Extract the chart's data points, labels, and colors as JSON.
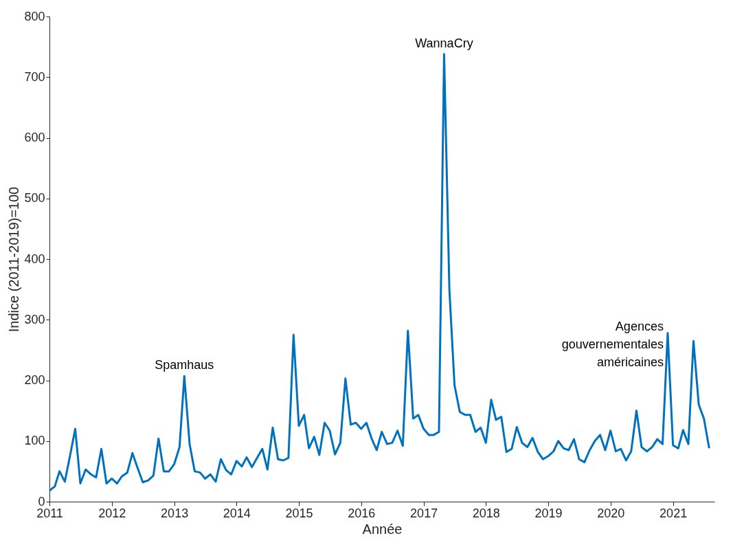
{
  "chart_data": {
    "type": "line",
    "xlabel": "Année",
    "ylabel": "Indice (2011-2019)=100",
    "xlim": [
      "2011-01",
      "2021-09"
    ],
    "xticks": [
      "2011",
      "2012",
      "2013",
      "2014",
      "2015",
      "2016",
      "2017",
      "2018",
      "2019",
      "2020",
      "2021"
    ],
    "ylim": [
      0,
      800
    ],
    "yticks": [
      0,
      100,
      200,
      300,
      400,
      500,
      600,
      700,
      800
    ],
    "grid": false,
    "marker": "none",
    "line_style": "solid",
    "annotations": [
      {
        "text": "Spamhaus",
        "x": "2013-03",
        "y": 207
      },
      {
        "text": "WannaCry",
        "x": "2017-05",
        "y": 738
      },
      {
        "text": "Agences gouvernementales américaines",
        "x": "2020-12",
        "y": 278
      }
    ],
    "series": [
      {
        "color": "#0072bd",
        "x": [
          "2011-01",
          "2011-02",
          "2011-03",
          "2011-04",
          "2011-05",
          "2011-06",
          "2011-07",
          "2011-08",
          "2011-09",
          "2011-10",
          "2011-11",
          "2011-12",
          "2012-01",
          "2012-02",
          "2012-03",
          "2012-04",
          "2012-05",
          "2012-06",
          "2012-07",
          "2012-08",
          "2012-09",
          "2012-10",
          "2012-11",
          "2012-12",
          "2013-01",
          "2013-02",
          "2013-03",
          "2013-04",
          "2013-05",
          "2013-06",
          "2013-07",
          "2013-08",
          "2013-09",
          "2013-10",
          "2013-11",
          "2013-12",
          "2014-01",
          "2014-02",
          "2014-03",
          "2014-04",
          "2014-05",
          "2014-06",
          "2014-07",
          "2014-08",
          "2014-09",
          "2014-10",
          "2014-11",
          "2014-12",
          "2015-01",
          "2015-02",
          "2015-03",
          "2015-04",
          "2015-05",
          "2015-06",
          "2015-07",
          "2015-08",
          "2015-09",
          "2015-10",
          "2015-11",
          "2015-12",
          "2016-01",
          "2016-02",
          "2016-03",
          "2016-04",
          "2016-05",
          "2016-06",
          "2016-07",
          "2016-08",
          "2016-09",
          "2016-10",
          "2016-11",
          "2016-12",
          "2017-01",
          "2017-02",
          "2017-03",
          "2017-04",
          "2017-05",
          "2017-06",
          "2017-07",
          "2017-08",
          "2017-09",
          "2017-10",
          "2017-11",
          "2017-12",
          "2018-01",
          "2018-02",
          "2018-03",
          "2018-04",
          "2018-05",
          "2018-06",
          "2018-07",
          "2018-08",
          "2018-09",
          "2018-10",
          "2018-11",
          "2018-12",
          "2019-01",
          "2019-02",
          "2019-03",
          "2019-04",
          "2019-05",
          "2019-06",
          "2019-07",
          "2019-08",
          "2019-09",
          "2019-10",
          "2019-11",
          "2019-12",
          "2020-01",
          "2020-02",
          "2020-03",
          "2020-04",
          "2020-05",
          "2020-06",
          "2020-07",
          "2020-08",
          "2020-09",
          "2020-10",
          "2020-11",
          "2020-12",
          "2021-01",
          "2021-02",
          "2021-03",
          "2021-04",
          "2021-05",
          "2021-06",
          "2021-07",
          "2021-08"
        ],
        "values": [
          18,
          25,
          50,
          33,
          75,
          120,
          30,
          53,
          45,
          40,
          87,
          30,
          38,
          30,
          42,
          48,
          80,
          55,
          32,
          35,
          43,
          104,
          50,
          50,
          62,
          90,
          207,
          95,
          50,
          48,
          38,
          45,
          33,
          70,
          52,
          45,
          67,
          58,
          73,
          57,
          72,
          87,
          53,
          122,
          70,
          68,
          72,
          275,
          125,
          143,
          88,
          107,
          77,
          130,
          117,
          78,
          97,
          203,
          127,
          130,
          120,
          130,
          105,
          85,
          115,
          95,
          97,
          117,
          92,
          282,
          137,
          143,
          120,
          110,
          110,
          115,
          738,
          350,
          192,
          148,
          143,
          143,
          115,
          122,
          97,
          168,
          135,
          140,
          82,
          87,
          123,
          97,
          90,
          105,
          82,
          70,
          75,
          83,
          100,
          88,
          85,
          103,
          70,
          65,
          85,
          100,
          110,
          85,
          117,
          83,
          87,
          68,
          83,
          150,
          90,
          83,
          90,
          103,
          95,
          278,
          93,
          88,
          118,
          95,
          265,
          160,
          137,
          88
        ]
      }
    ]
  }
}
